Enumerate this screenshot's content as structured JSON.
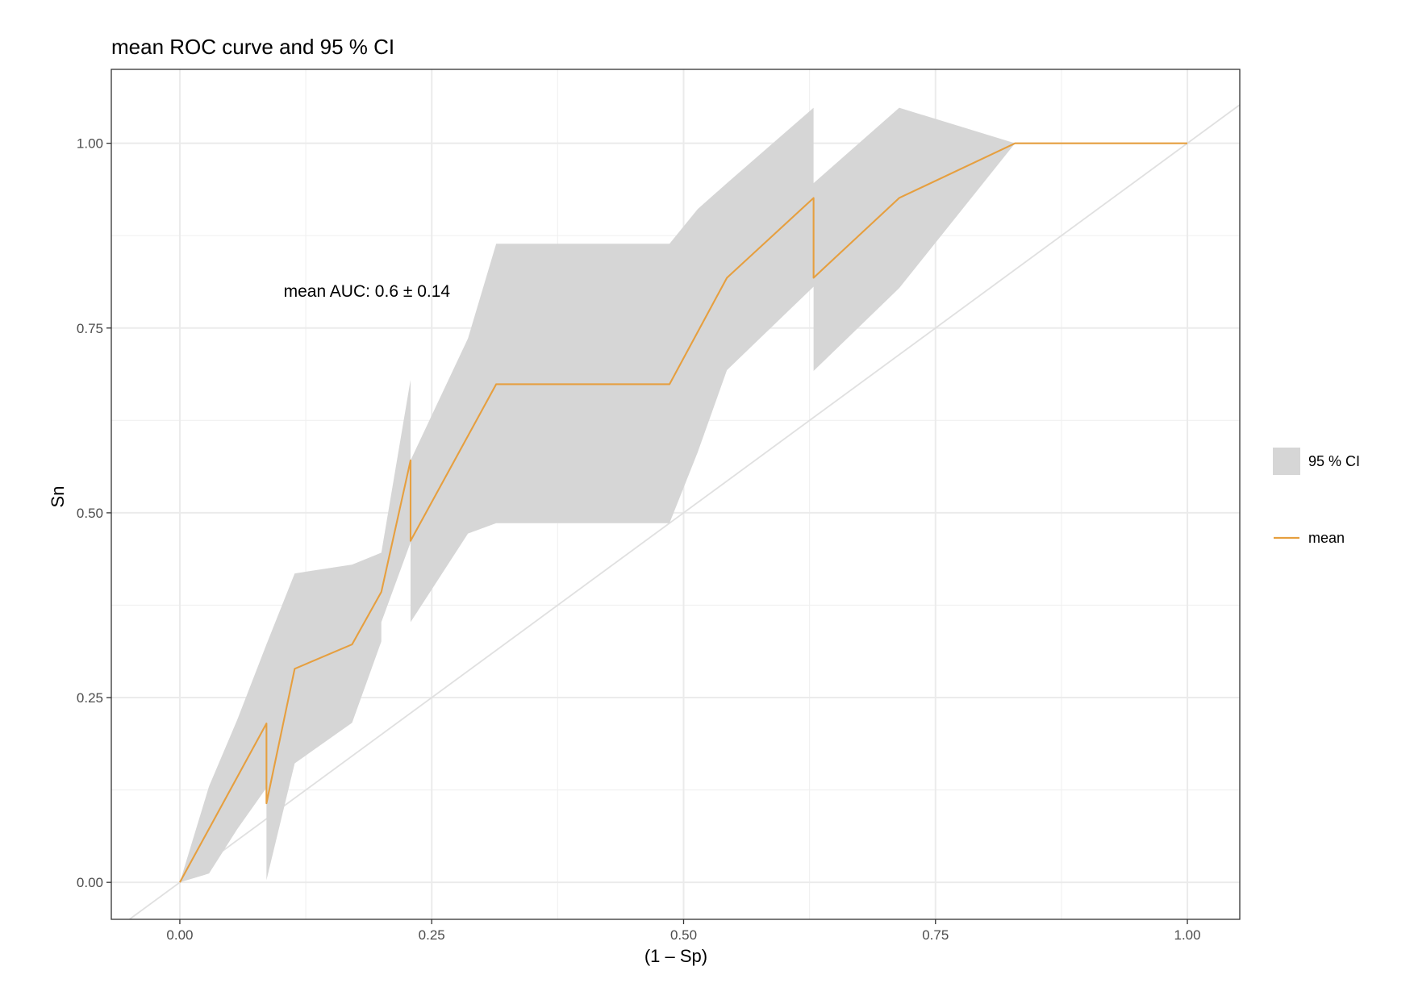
{
  "chart_data": {
    "type": "line",
    "title": "mean ROC curve and 95 % CI",
    "xlabel": "(1 – Sp)",
    "ylabel": "Sn",
    "xlim": [
      -0.068,
      1.052
    ],
    "ylim": [
      -0.05,
      1.1
    ],
    "x_ticks": [
      0,
      0.25,
      0.5,
      0.75,
      1
    ],
    "x_tick_labels": [
      "0.00",
      "0.25",
      "0.50",
      "0.75",
      "1.00"
    ],
    "y_ticks": [
      0,
      0.25,
      0.5,
      0.75,
      1
    ],
    "y_tick_labels": [
      "0.00",
      "0.25",
      "0.50",
      "0.75",
      "1.00"
    ],
    "grid": true,
    "legend_position": "right",
    "annotation": {
      "text": "mean AUC:  0.6 ±  0.14",
      "x": 0.103,
      "y": 0.8
    },
    "reference_line": {
      "intercept": 0,
      "slope": 1,
      "color": "#e0e0e0"
    },
    "ci_band": {
      "name": "95 % CI",
      "color": "#d6d6d6",
      "x": [
        0,
        0.029,
        0.057,
        0.086,
        0.086,
        0.114,
        0.171,
        0.2,
        0.2,
        0.229,
        0.229,
        0.286,
        0.314,
        0.486,
        0.514,
        0.543,
        0.629,
        0.629,
        0.714,
        0.829,
        1.0
      ],
      "lower": [
        0,
        0.012,
        0.072,
        0.128,
        0.003,
        0.161,
        0.216,
        0.326,
        0.352,
        0.46,
        0.352,
        0.472,
        0.486,
        0.486,
        0.582,
        0.693,
        0.806,
        0.692,
        0.804,
        1.0,
        1.0
      ],
      "upper": [
        0,
        0.13,
        0.22,
        0.322,
        0.322,
        0.418,
        0.43,
        0.446,
        0.446,
        0.68,
        0.571,
        0.736,
        0.864,
        0.864,
        0.911,
        0.946,
        1.048,
        0.946,
        1.048,
        1.0,
        1.0
      ]
    },
    "series": [
      {
        "name": "mean",
        "color": "#e69f3f",
        "x": [
          0,
          0.086,
          0.086,
          0.114,
          0.171,
          0.2,
          0.229,
          0.229,
          0.314,
          0.486,
          0.543,
          0.629,
          0.629,
          0.714,
          0.829,
          1.0
        ],
        "y": [
          0,
          0.215,
          0.107,
          0.289,
          0.322,
          0.393,
          0.571,
          0.462,
          0.674,
          0.674,
          0.818,
          0.926,
          0.818,
          0.926,
          1.0,
          1.0
        ]
      }
    ]
  }
}
